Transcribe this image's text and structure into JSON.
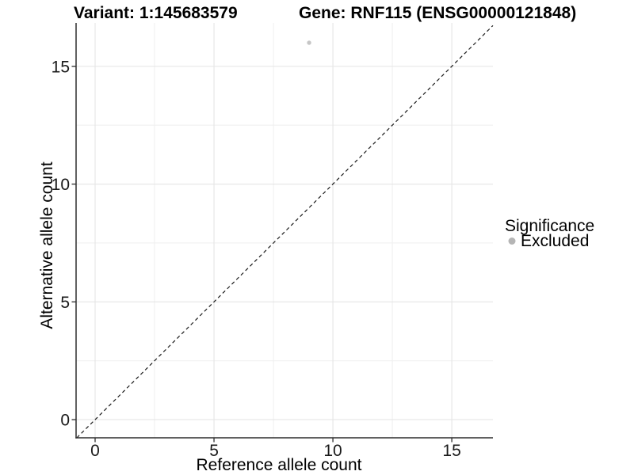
{
  "chart_data": {
    "type": "scatter",
    "titles": {
      "left": "Variant: 1:145683579",
      "right": "Gene: RNF115 (ENSG00000121848)"
    },
    "xlabel": "Reference allele count",
    "ylabel": "Alternative allele count",
    "xlim": [
      -0.8,
      16.73
    ],
    "ylim": [
      -0.77,
      16.84
    ],
    "x_ticks": [
      0,
      5,
      10,
      15
    ],
    "y_ticks": [
      0,
      5,
      10,
      15
    ],
    "x_minor_ticks": [
      2.5,
      7.5,
      12.5
    ],
    "y_minor_ticks": [
      2.5,
      7.5,
      12.5
    ],
    "grid": "major and minor gridlines on white background",
    "points": [
      {
        "x": 9,
        "y": 16,
        "series": "Excluded"
      }
    ],
    "reference_line": {
      "type": "identity y=x",
      "style": "dashed",
      "color": "#1a1a1a"
    },
    "legend": {
      "title": "Significance",
      "position": "right",
      "entries": [
        {
          "label": "Excluded",
          "color": "#b5b5b5"
        }
      ]
    },
    "colors": {
      "point": "#c6c6c6",
      "grid_major": "#e5e5e5",
      "grid_minor": "#efefef",
      "axis_line": "#2d2d2d",
      "tick_mark": "#2d2d2d",
      "background": "#ffffff"
    }
  }
}
